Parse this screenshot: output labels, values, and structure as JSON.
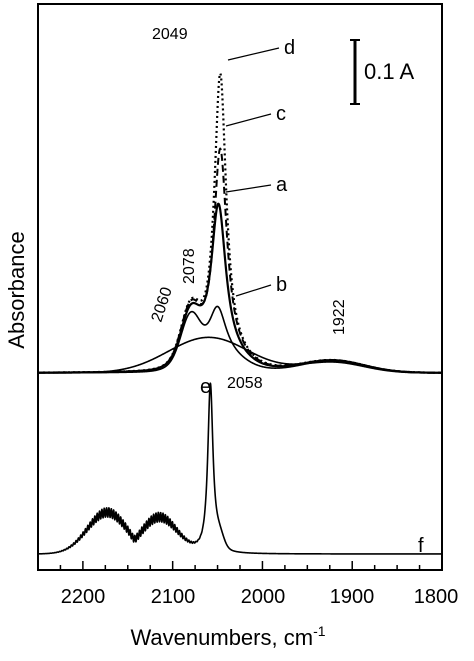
{
  "chart_data": {
    "type": "line",
    "xlabel": "Wavenumbers, cm",
    "xlabel_sup": "-1",
    "ylabel": "Absorbance",
    "xlim": [
      2250,
      1800
    ],
    "x_reversed": true,
    "x_ticks": [
      "2200",
      "2100",
      "2000",
      "1900",
      "1800"
    ],
    "x_tick_values": [
      2200,
      2100,
      2000,
      1900,
      1800
    ],
    "y_ticks_visible": false,
    "scale_bar": {
      "label": "0.1 A",
      "value": 0.1
    },
    "series": [
      {
        "name": "a",
        "style": "solid",
        "peaks": [
          [
            2049,
            0.51
          ],
          [
            2078,
            0.18
          ]
        ]
      },
      {
        "name": "b",
        "style": "solid",
        "peaks": [
          [
            2049,
            0.21
          ],
          [
            2078,
            0.16
          ]
        ]
      },
      {
        "name": "c",
        "style": "dashed",
        "peaks": [
          [
            2049,
            0.67
          ],
          [
            2078,
            0.19
          ]
        ]
      },
      {
        "name": "d",
        "style": "dotted",
        "peaks": [
          [
            2049,
            0.87
          ],
          [
            2078,
            0.19
          ]
        ]
      },
      {
        "name": "e",
        "style": "solid",
        "peaks": [
          [
            2060,
            0.09
          ]
        ]
      },
      {
        "name": "f",
        "style": "solid",
        "peaks": [
          [
            2058,
            0.67
          ]
        ]
      }
    ],
    "annotations": [
      "2049",
      "2078",
      "2060",
      "1922",
      "2058"
    ]
  }
}
